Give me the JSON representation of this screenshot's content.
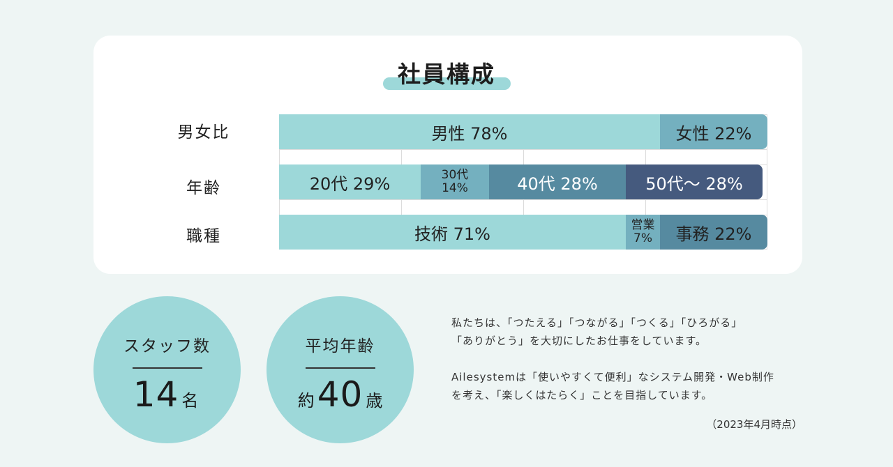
{
  "title": "社員構成",
  "chart_data": {
    "type": "bar",
    "orientation": "horizontal",
    "stacked": true,
    "normalized_to": 100,
    "rows": [
      {
        "label": "男女比",
        "segments": [
          {
            "name": "男性",
            "text": "男性  78%",
            "value": 78,
            "color": "#9dd8d9",
            "text_color": "#222222"
          },
          {
            "name": "女性",
            "text": "女性  22%",
            "value": 22,
            "color": "#74b0bf",
            "text_color": "#222222"
          }
        ]
      },
      {
        "label": "年齢",
        "segments": [
          {
            "name": "20代",
            "text": "20代   29%",
            "value": 29,
            "color": "#9dd8d9",
            "text_color": "#222222"
          },
          {
            "name": "30代",
            "line1": "30代",
            "line2": "14%",
            "value": 14,
            "color": "#74b0bf",
            "text_color": "#222222"
          },
          {
            "name": "40代",
            "text": "40代   28%",
            "value": 28,
            "color": "#568aa0",
            "text_color": "#ffffff"
          },
          {
            "name": "50代〜",
            "text": "50代〜 28%",
            "value": 28,
            "color": "#455a7e",
            "text_color": "#ffffff"
          }
        ]
      },
      {
        "label": "職種",
        "segments": [
          {
            "name": "技術",
            "text": "技術  71%",
            "value": 71,
            "color": "#9dd8d9",
            "text_color": "#222222"
          },
          {
            "name": "営業",
            "line1": "営業",
            "line2": "7%",
            "value": 7,
            "color": "#74b0bf",
            "text_color": "#222222"
          },
          {
            "name": "事務",
            "text": "事務  22%",
            "value": 22,
            "color": "#568aa0",
            "text_color": "#222222"
          }
        ]
      }
    ],
    "grid": true
  },
  "stats": [
    {
      "label": "スタッフ数",
      "number": "14",
      "prefix": "",
      "suffix": "名"
    },
    {
      "label": "平均年齢",
      "number": "40",
      "prefix": "約",
      "suffix": "歳"
    }
  ],
  "description": {
    "line1": "私たちは、「つたえる」「つながる」「つくる」「ひろがる」",
    "line2": "「ありがとう」を大切にしたお仕事をしています。",
    "line3": "Ailesystemは「使いやすくて便利」なシステム開発・Web制作",
    "line4": "を考え、「楽しくはたらく」ことを目指しています。"
  },
  "date_note": "（2023年4月時点）"
}
